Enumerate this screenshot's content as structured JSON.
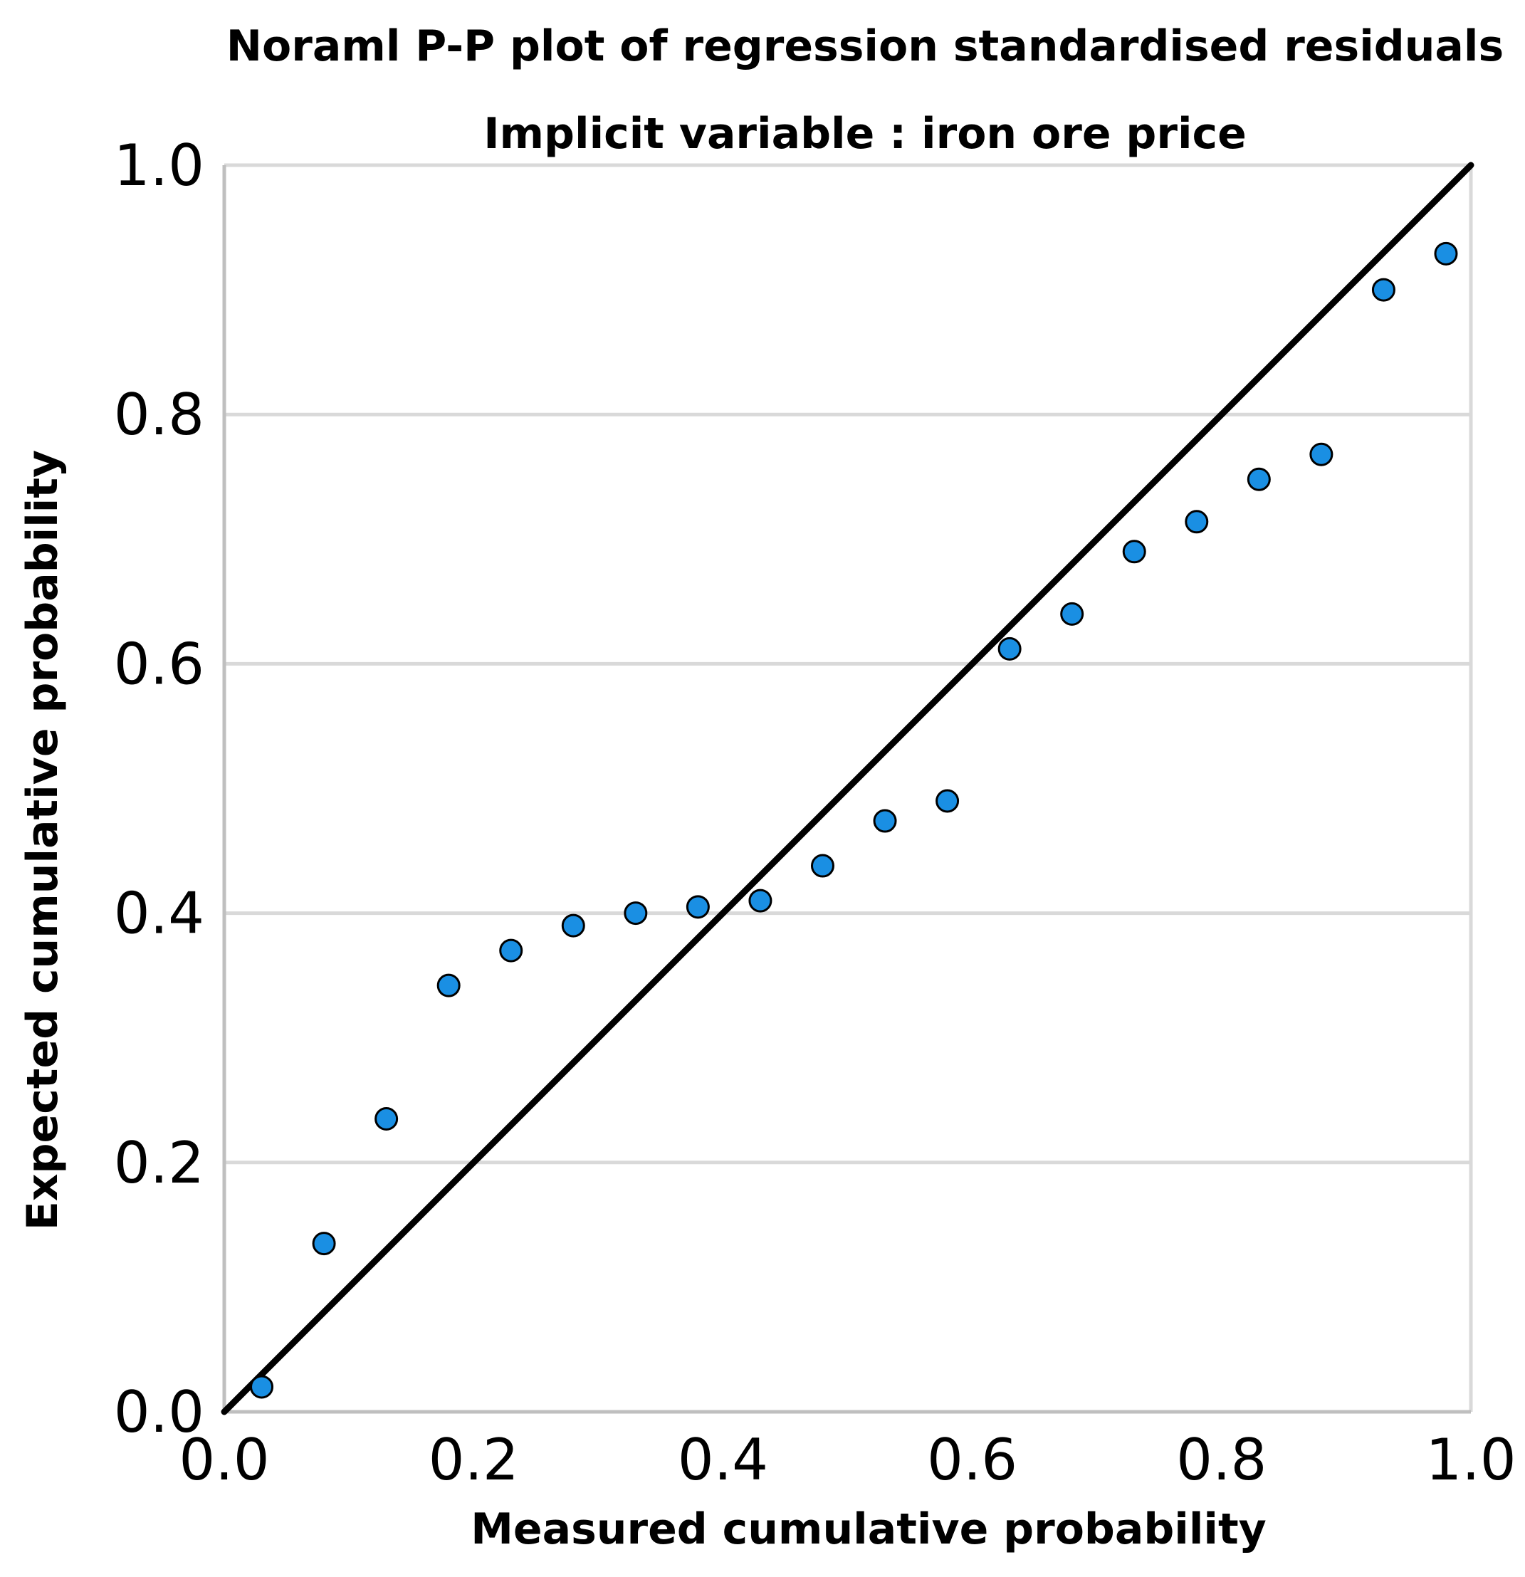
{
  "chart_data": {
    "type": "scatter",
    "title": "Noraml P-P plot of regression standardised residuals",
    "subtitle": "Implicit variable : iron ore price",
    "xlabel": "Measured cumulative probability",
    "ylabel": "Expected cumulative probability",
    "xlim": [
      0.0,
      1.0
    ],
    "ylim": [
      0.0,
      1.0
    ],
    "x_ticks": [
      "0.0",
      "0.2",
      "0.4",
      "0.6",
      "0.8",
      "1.0"
    ],
    "y_ticks": [
      "0.0",
      "0.2",
      "0.4",
      "0.6",
      "0.8",
      "1.0"
    ],
    "grid": "horizontal",
    "reference_line": {
      "from": [
        0.0,
        0.0
      ],
      "to": [
        1.0,
        1.0
      ]
    },
    "series": [
      {
        "name": "standardised residuals",
        "color": "#1a8fe3",
        "x": [
          0.03,
          0.08,
          0.13,
          0.18,
          0.23,
          0.28,
          0.33,
          0.38,
          0.43,
          0.48,
          0.53,
          0.58,
          0.63,
          0.68,
          0.73,
          0.78,
          0.83,
          0.88,
          0.93,
          0.98
        ],
        "y": [
          0.02,
          0.135,
          0.235,
          0.342,
          0.37,
          0.39,
          0.4,
          0.405,
          0.41,
          0.438,
          0.474,
          0.49,
          0.612,
          0.64,
          0.69,
          0.714,
          0.748,
          0.768,
          0.9,
          0.929
        ]
      }
    ]
  }
}
